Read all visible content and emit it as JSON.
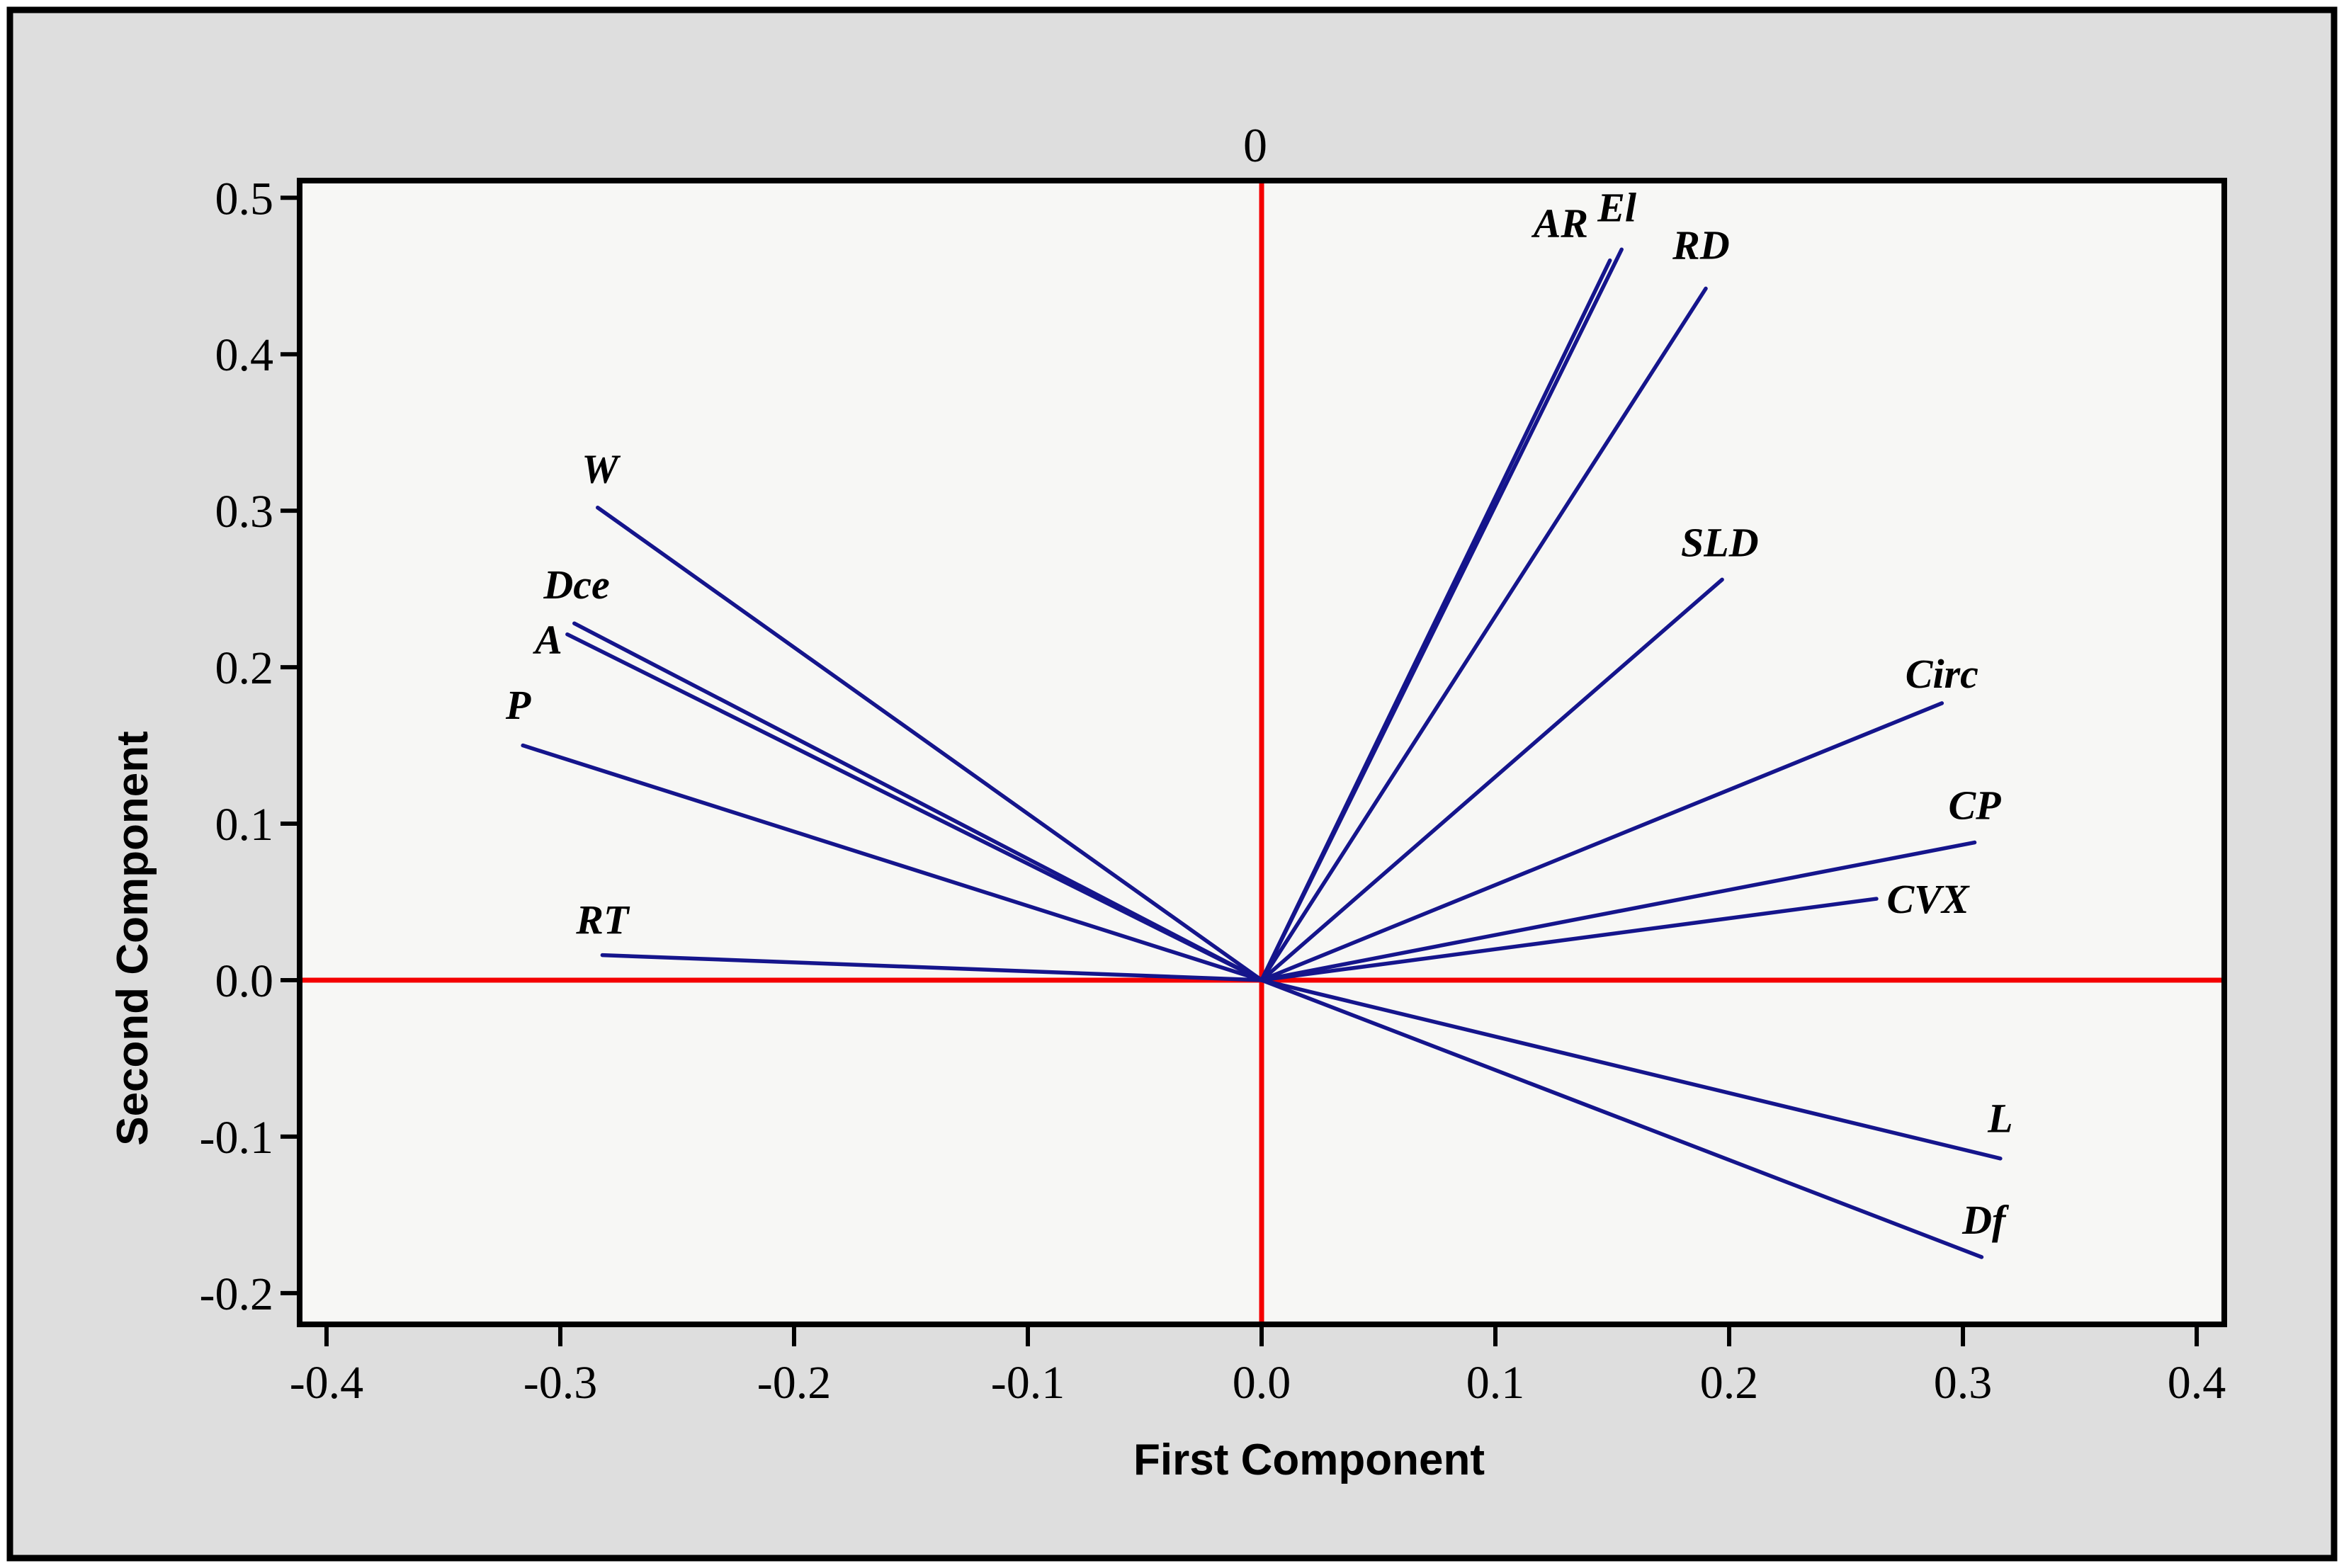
{
  "figure": {
    "top_reference_label": "0"
  },
  "colors": {
    "background": "#dedede",
    "plot_background": "#f7f7f5",
    "figure_border": "#000000",
    "plot_border": "#000000",
    "vector": "#15158c",
    "reference_line": "#f40000",
    "text": "#000000"
  },
  "chart_data": {
    "type": "line",
    "variant": "pca_loading_vector_plot",
    "title": "",
    "xlabel": "First Component",
    "ylabel": "Second Component",
    "xlim": [
      -0.4115,
      0.4118
    ],
    "ylim": [
      -0.22,
      0.511
    ],
    "grid": false,
    "legend": "none",
    "x_tick_values": [
      -0.4,
      -0.3,
      -0.2,
      -0.1,
      0.0,
      0.1,
      0.2,
      0.3,
      0.4
    ],
    "x_tick_labels": [
      "-0.4",
      "-0.3",
      "-0.2",
      "-0.1",
      "0.0",
      "0.1",
      "0.2",
      "0.3",
      "0.4"
    ],
    "y_tick_values": [
      0.5,
      0.4,
      0.3,
      0.2,
      0.1,
      0.0,
      -0.1,
      -0.2
    ],
    "y_tick_labels": [
      "0.5",
      "0.4",
      "0.3",
      "0.2",
      "0.1",
      "0.0",
      "-0.1",
      "-0.2"
    ],
    "reference_lines": {
      "vertical_at_x": 0.0,
      "horizontal_at_y": 0.0,
      "top_label": "0"
    },
    "vectors_origin": [
      0.0,
      0.0
    ],
    "series": [
      {
        "name": "AR",
        "x": 0.149,
        "y": 0.46,
        "label_x": 0.128,
        "label_y": 0.484
      },
      {
        "name": "El",
        "x": 0.154,
        "y": 0.467,
        "label_x": 0.152,
        "label_y": 0.494
      },
      {
        "name": "RD",
        "x": 0.19,
        "y": 0.442,
        "label_x": 0.188,
        "label_y": 0.47
      },
      {
        "name": "SLD",
        "x": 0.197,
        "y": 0.256,
        "label_x": 0.196,
        "label_y": 0.28
      },
      {
        "name": "Circ",
        "x": 0.291,
        "y": 0.177,
        "label_x": 0.291,
        "label_y": 0.196
      },
      {
        "name": "CP",
        "x": 0.305,
        "y": 0.088,
        "label_x": 0.305,
        "label_y": 0.112
      },
      {
        "name": "CVX",
        "x": 0.263,
        "y": 0.052,
        "label_x": 0.285,
        "label_y": 0.052
      },
      {
        "name": "L",
        "x": 0.316,
        "y": -0.114,
        "label_x": 0.316,
        "label_y": -0.088
      },
      {
        "name": "Df",
        "x": 0.308,
        "y": -0.177,
        "label_x": 0.309,
        "label_y": -0.153
      },
      {
        "name": "W",
        "x": -0.284,
        "y": 0.302,
        "label_x": -0.283,
        "label_y": 0.327
      },
      {
        "name": "Dce",
        "x": -0.294,
        "y": 0.228,
        "label_x": -0.293,
        "label_y": 0.253
      },
      {
        "name": "A",
        "x": -0.297,
        "y": 0.221,
        "label_x": -0.305,
        "label_y": 0.218
      },
      {
        "name": "P",
        "x": -0.316,
        "y": 0.15,
        "label_x": -0.318,
        "label_y": 0.176
      },
      {
        "name": "RT",
        "x": -0.282,
        "y": 0.016,
        "label_x": -0.282,
        "label_y": 0.039
      }
    ]
  }
}
